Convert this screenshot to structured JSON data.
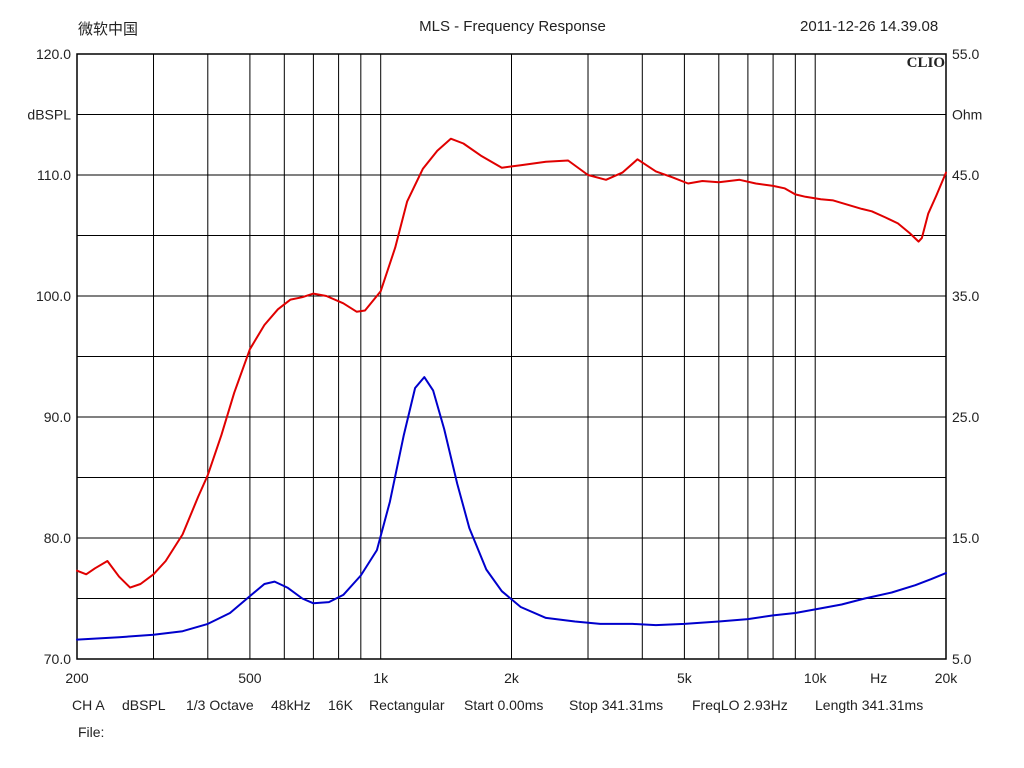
{
  "header": {
    "app_name": "微软中国",
    "title": "MLS - Frequency Response",
    "timestamp": "2011-12-26 14.39.08",
    "logo": "CLIO"
  },
  "chart_data": {
    "type": "line",
    "title": "MLS - Frequency Response",
    "x_scale": "log",
    "xlim": [
      200,
      20000
    ],
    "x_ticks": [
      {
        "v": 200,
        "label": "200"
      },
      {
        "v": 500,
        "label": "500"
      },
      {
        "v": 1000,
        "label": "1k"
      },
      {
        "v": 2000,
        "label": "2k"
      },
      {
        "v": 5000,
        "label": "5k"
      },
      {
        "v": 10000,
        "label": "10k"
      },
      {
        "v": 14000,
        "label": "Hz"
      },
      {
        "v": 20000,
        "label": "20k"
      }
    ],
    "grid_x": [
      300,
      400,
      500,
      600,
      700,
      800,
      900,
      1000,
      2000,
      3000,
      4000,
      5000,
      6000,
      7000,
      8000,
      9000,
      10000
    ],
    "ylabel_left": "dBSPL",
    "ylim_left": [
      70,
      120
    ],
    "y_ticks_left": [
      "70.0",
      "80.0",
      "90.0",
      "100.0",
      "110.0",
      "120.0"
    ],
    "ylabel_right": "Ohm",
    "ylim_right": [
      5,
      55
    ],
    "y_ticks_right": [
      "5.0",
      "15.0",
      "25.0",
      "35.0",
      "45.0",
      "55.0"
    ],
    "grid": true,
    "series": [
      {
        "color": "#e00000",
        "axis": "left",
        "points": [
          [
            200,
            77.3
          ],
          [
            210,
            77.0
          ],
          [
            220,
            77.5
          ],
          [
            235,
            78.1
          ],
          [
            250,
            76.8
          ],
          [
            265,
            75.9
          ],
          [
            280,
            76.2
          ],
          [
            300,
            77.0
          ],
          [
            320,
            78.1
          ],
          [
            350,
            80.3
          ],
          [
            380,
            83.4
          ],
          [
            400,
            85.2
          ],
          [
            430,
            88.5
          ],
          [
            460,
            92.0
          ],
          [
            500,
            95.6
          ],
          [
            540,
            97.6
          ],
          [
            580,
            98.9
          ],
          [
            620,
            99.7
          ],
          [
            660,
            99.9
          ],
          [
            700,
            100.2
          ],
          [
            750,
            100.0
          ],
          [
            820,
            99.4
          ],
          [
            880,
            98.7
          ],
          [
            920,
            98.8
          ],
          [
            1000,
            100.4
          ],
          [
            1080,
            104.0
          ],
          [
            1150,
            107.8
          ],
          [
            1250,
            110.5
          ],
          [
            1350,
            112.0
          ],
          [
            1450,
            113.0
          ],
          [
            1550,
            112.6
          ],
          [
            1700,
            111.6
          ],
          [
            1900,
            110.6
          ],
          [
            2100,
            110.8
          ],
          [
            2400,
            111.1
          ],
          [
            2700,
            111.2
          ],
          [
            3000,
            110.0
          ],
          [
            3300,
            109.6
          ],
          [
            3600,
            110.2
          ],
          [
            3900,
            111.3
          ],
          [
            4300,
            110.3
          ],
          [
            4700,
            109.8
          ],
          [
            5100,
            109.3
          ],
          [
            5500,
            109.5
          ],
          [
            6000,
            109.4
          ],
          [
            6700,
            109.6
          ],
          [
            7300,
            109.3
          ],
          [
            8000,
            109.1
          ],
          [
            8500,
            108.9
          ],
          [
            9000,
            108.4
          ],
          [
            9500,
            108.2
          ],
          [
            10300,
            108.0
          ],
          [
            11000,
            107.9
          ],
          [
            12000,
            107.5
          ],
          [
            12800,
            107.2
          ],
          [
            13500,
            107.0
          ],
          [
            14500,
            106.5
          ],
          [
            15500,
            106.0
          ],
          [
            16500,
            105.2
          ],
          [
            17300,
            104.5
          ],
          [
            17600,
            104.8
          ],
          [
            18200,
            106.8
          ],
          [
            19000,
            108.3
          ],
          [
            20000,
            110.2
          ]
        ]
      },
      {
        "color": "#0000cc",
        "axis": "right",
        "points": [
          [
            200,
            6.6
          ],
          [
            250,
            6.8
          ],
          [
            300,
            7.0
          ],
          [
            350,
            7.3
          ],
          [
            400,
            7.9
          ],
          [
            450,
            8.8
          ],
          [
            500,
            10.2
          ],
          [
            540,
            11.2
          ],
          [
            570,
            11.4
          ],
          [
            610,
            10.9
          ],
          [
            660,
            10.0
          ],
          [
            700,
            9.6
          ],
          [
            760,
            9.7
          ],
          [
            820,
            10.3
          ],
          [
            900,
            11.9
          ],
          [
            980,
            14.0
          ],
          [
            1050,
            18.0
          ],
          [
            1130,
            23.5
          ],
          [
            1200,
            27.4
          ],
          [
            1260,
            28.3
          ],
          [
            1320,
            27.2
          ],
          [
            1400,
            24.0
          ],
          [
            1500,
            19.5
          ],
          [
            1600,
            15.8
          ],
          [
            1750,
            12.4
          ],
          [
            1900,
            10.6
          ],
          [
            2100,
            9.3
          ],
          [
            2400,
            8.4
          ],
          [
            2800,
            8.1
          ],
          [
            3200,
            7.9
          ],
          [
            3800,
            7.9
          ],
          [
            4300,
            7.8
          ],
          [
            5000,
            7.9
          ],
          [
            6000,
            8.1
          ],
          [
            7000,
            8.3
          ],
          [
            8000,
            8.6
          ],
          [
            9000,
            8.8
          ],
          [
            10000,
            9.1
          ],
          [
            11500,
            9.5
          ],
          [
            13000,
            10.0
          ],
          [
            15000,
            10.5
          ],
          [
            17000,
            11.1
          ],
          [
            18500,
            11.6
          ],
          [
            20000,
            12.1
          ]
        ]
      }
    ]
  },
  "footer": {
    "channel": "CH A",
    "unit": "dBSPL",
    "smoothing": "1/3 Octave",
    "sample_rate": "48kHz",
    "size": "16K",
    "window": "Rectangular",
    "start": "Start 0.00ms",
    "stop": "Stop 341.31ms",
    "freq_lo": "FreqLO 2.93Hz",
    "length": "Length 341.31ms",
    "file_label": "File:"
  }
}
